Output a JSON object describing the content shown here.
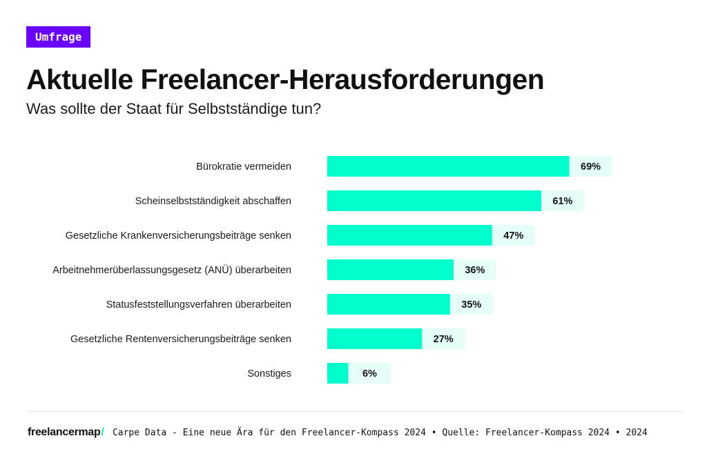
{
  "badge": {
    "label": "Umfrage"
  },
  "header": {
    "title": "Aktuelle Freelancer-Herausforderungen",
    "subtitle": "Was sollte der Staat für Selbstständige tun?"
  },
  "colors": {
    "bar": "#00ffcc",
    "bar_track": "#e5fff8",
    "badge": "#6a00ff",
    "logo_slash": "#10e8c0"
  },
  "chart_data": {
    "type": "bar",
    "orientation": "horizontal",
    "categories": [
      "Bürokratie vermeiden",
      "Scheinselbstständigkeit abschaffen",
      "Gesetzliche Krankenversicherungsbeiträge senken",
      "Arbeitnehmerüberlassungsgesetz (ANÜ) überarbeiten",
      "Statusfeststellungsverfahren überarbeiten",
      "Gesetzliche Rentenversicherungsbeiträge senken",
      "Sonstiges"
    ],
    "values": [
      69,
      61,
      47,
      36,
      35,
      27,
      6
    ],
    "value_labels": [
      "69%",
      "61%",
      "47%",
      "36%",
      "35%",
      "27%",
      "6%"
    ],
    "unit": "%",
    "xlim": [
      0,
      100
    ],
    "title": "Aktuelle Freelancer-Herausforderungen",
    "subtitle": "Was sollte der Staat für Selbstständige tun?",
    "xlabel": "",
    "ylabel": "",
    "grid": false,
    "legend": "none"
  },
  "footer": {
    "logo": "freelancermap",
    "logo_slash": "/",
    "text": "Carpe Data - Eine neue Ära für den Freelancer-Kompass 2024 • Quelle: Freelancer-Kompass 2024 • 2024"
  }
}
